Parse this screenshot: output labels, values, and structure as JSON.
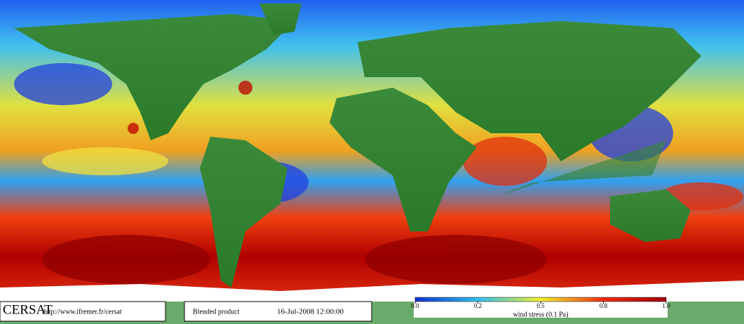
{
  "footer": {
    "logo": "CERSAT",
    "url": "http://www.ifremer.fr/cersat",
    "product": "Blended product",
    "date": "16-Jul-2008 12:00:00"
  },
  "colorbar": {
    "label": "wind stress (0.1 Pa)",
    "colors": [
      "#1030d0",
      "#30c0f0",
      "#f0f030",
      "#f03010",
      "#a00000"
    ],
    "ticks": [
      {
        "value": 0,
        "label": "0.0"
      },
      0.2,
      0.5,
      0.8,
      {
        "value": 1,
        "label": "1.0"
      }
    ]
  }
}
